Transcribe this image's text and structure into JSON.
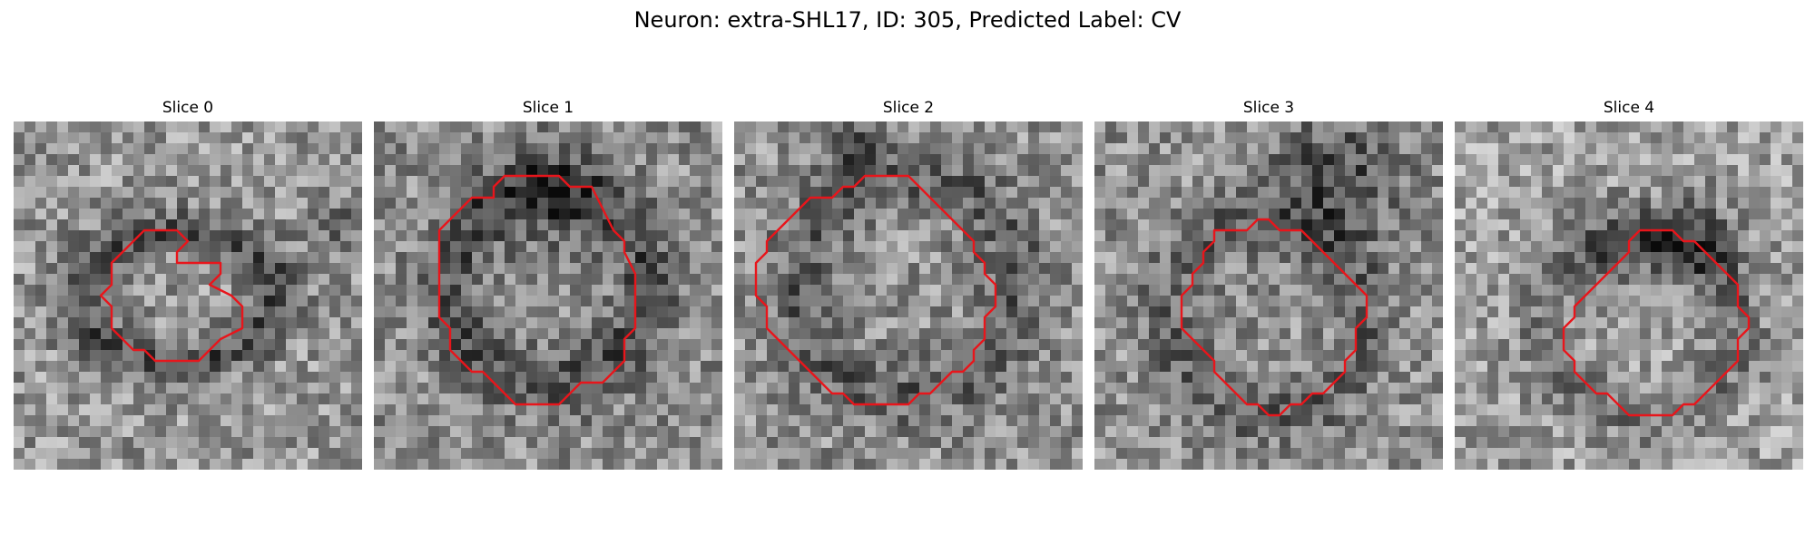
{
  "figure_title": "Neuron: extra-SHL17, ID: 305, Predicted Label: CV",
  "contour_color": "#e8151b",
  "panels": [
    {
      "title": "Slice 0",
      "grid_size": 32,
      "base_gray": 150,
      "dark_ring": {
        "cx": 15,
        "cy": 16,
        "rx": 9,
        "ry": 6,
        "strength": 70
      },
      "dark_blobs": [
        [
          30,
          10,
          3,
          45
        ]
      ],
      "contour": [
        [
          10,
          12
        ],
        [
          12,
          10
        ],
        [
          15,
          10
        ],
        [
          16,
          11
        ],
        [
          15,
          12
        ],
        [
          15,
          13
        ],
        [
          19,
          13
        ],
        [
          19,
          14
        ],
        [
          18,
          15
        ],
        [
          20,
          16
        ],
        [
          21,
          17
        ],
        [
          21,
          19
        ],
        [
          19,
          20
        ],
        [
          18,
          21
        ],
        [
          17,
          22
        ],
        [
          13,
          22
        ],
        [
          12,
          21
        ],
        [
          11,
          21
        ],
        [
          10,
          20
        ],
        [
          9,
          19
        ],
        [
          9,
          17
        ],
        [
          8,
          16
        ],
        [
          9,
          15
        ],
        [
          9,
          13
        ]
      ]
    },
    {
      "title": "Slice 1",
      "grid_size": 32,
      "base_gray": 140,
      "dark_ring": {
        "cx": 16,
        "cy": 15,
        "rx": 9,
        "ry": 9,
        "strength": 60
      },
      "dark_blobs": [
        [
          16,
          7,
          5,
          55
        ]
      ],
      "contour": [
        [
          11,
          6
        ],
        [
          12,
          5
        ],
        [
          17,
          5
        ],
        [
          18,
          6
        ],
        [
          20,
          6
        ],
        [
          21,
          8
        ],
        [
          22,
          10
        ],
        [
          23,
          11
        ],
        [
          23,
          12
        ],
        [
          24,
          14
        ],
        [
          24,
          19
        ],
        [
          23,
          20
        ],
        [
          23,
          22
        ],
        [
          22,
          23
        ],
        [
          21,
          24
        ],
        [
          19,
          24
        ],
        [
          18,
          25
        ],
        [
          17,
          26
        ],
        [
          13,
          26
        ],
        [
          12,
          25
        ],
        [
          11,
          24
        ],
        [
          10,
          23
        ],
        [
          9,
          23
        ],
        [
          7,
          21
        ],
        [
          7,
          19
        ],
        [
          6,
          18
        ],
        [
          6,
          10
        ],
        [
          7,
          9
        ],
        [
          8,
          8
        ],
        [
          9,
          7
        ],
        [
          11,
          7
        ]
      ]
    },
    {
      "title": "Slice 2",
      "grid_size": 32,
      "base_gray": 145,
      "dark_ring": {
        "cx": 16,
        "cy": 15,
        "rx": 10,
        "ry": 10,
        "strength": 50
      },
      "dark_blobs": [
        [
          11,
          2,
          3,
          60
        ]
      ],
      "contour": [
        [
          11,
          6
        ],
        [
          12,
          5
        ],
        [
          16,
          5
        ],
        [
          17,
          6
        ],
        [
          18,
          7
        ],
        [
          19,
          8
        ],
        [
          20,
          9
        ],
        [
          21,
          10
        ],
        [
          22,
          11
        ],
        [
          22,
          12
        ],
        [
          23,
          13
        ],
        [
          23,
          14
        ],
        [
          24,
          15
        ],
        [
          24,
          17
        ],
        [
          23,
          18
        ],
        [
          23,
          20
        ],
        [
          22,
          21
        ],
        [
          22,
          22
        ],
        [
          21,
          23
        ],
        [
          20,
          23
        ],
        [
          19,
          24
        ],
        [
          18,
          25
        ],
        [
          17,
          25
        ],
        [
          16,
          26
        ],
        [
          11,
          26
        ],
        [
          10,
          25
        ],
        [
          9,
          25
        ],
        [
          8,
          24
        ],
        [
          7,
          23
        ],
        [
          6,
          22
        ],
        [
          5,
          21
        ],
        [
          4,
          20
        ],
        [
          3,
          19
        ],
        [
          3,
          17
        ],
        [
          2,
          16
        ],
        [
          2,
          13
        ],
        [
          3,
          12
        ],
        [
          3,
          11
        ],
        [
          4,
          10
        ],
        [
          5,
          9
        ],
        [
          6,
          8
        ],
        [
          7,
          7
        ],
        [
          9,
          7
        ],
        [
          10,
          6
        ]
      ]
    },
    {
      "title": "Slice 3",
      "grid_size": 32,
      "base_gray": 145,
      "dark_ring": {
        "cx": 16,
        "cy": 18,
        "rx": 9,
        "ry": 9,
        "strength": 45
      },
      "dark_blobs": [
        [
          22,
          5,
          6,
          70
        ]
      ],
      "contour": [
        [
          11,
          10
        ],
        [
          12,
          10
        ],
        [
          14,
          10
        ],
        [
          15,
          9
        ],
        [
          16,
          9
        ],
        [
          17,
          10
        ],
        [
          19,
          10
        ],
        [
          20,
          11
        ],
        [
          21,
          12
        ],
        [
          22,
          13
        ],
        [
          23,
          14
        ],
        [
          24,
          15
        ],
        [
          25,
          16
        ],
        [
          25,
          18
        ],
        [
          24,
          19
        ],
        [
          24,
          21
        ],
        [
          23,
          22
        ],
        [
          23,
          23
        ],
        [
          22,
          24
        ],
        [
          21,
          25
        ],
        [
          20,
          25
        ],
        [
          19,
          26
        ],
        [
          18,
          26
        ],
        [
          17,
          27
        ],
        [
          16,
          27
        ],
        [
          15,
          26
        ],
        [
          14,
          26
        ],
        [
          13,
          25
        ],
        [
          12,
          24
        ],
        [
          11,
          23
        ],
        [
          11,
          22
        ],
        [
          10,
          21
        ],
        [
          9,
          20
        ],
        [
          8,
          19
        ],
        [
          8,
          16
        ],
        [
          9,
          15
        ],
        [
          9,
          14
        ],
        [
          10,
          13
        ],
        [
          10,
          12
        ],
        [
          11,
          11
        ]
      ]
    },
    {
      "title": "Slice 4",
      "grid_size": 32,
      "base_gray": 160,
      "dark_ring": {
        "cx": 17,
        "cy": 19,
        "rx": 9,
        "ry": 8,
        "strength": 45
      },
      "dark_blobs": [
        [
          22,
          11,
          4,
          80
        ],
        [
          15,
          11,
          4,
          45
        ]
      ],
      "contour": [
        [
          17,
          10
        ],
        [
          20,
          10
        ],
        [
          21,
          11
        ],
        [
          22,
          11
        ],
        [
          23,
          12
        ],
        [
          24,
          13
        ],
        [
          25,
          14
        ],
        [
          26,
          15
        ],
        [
          26,
          17
        ],
        [
          27,
          18
        ],
        [
          27,
          19
        ],
        [
          26,
          20
        ],
        [
          26,
          22
        ],
        [
          25,
          23
        ],
        [
          24,
          24
        ],
        [
          23,
          25
        ],
        [
          22,
          26
        ],
        [
          21,
          26
        ],
        [
          20,
          27
        ],
        [
          16,
          27
        ],
        [
          15,
          26
        ],
        [
          14,
          25
        ],
        [
          13,
          25
        ],
        [
          12,
          24
        ],
        [
          11,
          23
        ],
        [
          11,
          22
        ],
        [
          10,
          21
        ],
        [
          10,
          19
        ],
        [
          11,
          18
        ],
        [
          11,
          17
        ],
        [
          12,
          16
        ],
        [
          13,
          15
        ],
        [
          14,
          14
        ],
        [
          15,
          13
        ],
        [
          16,
          12
        ],
        [
          16,
          11
        ]
      ]
    }
  ]
}
